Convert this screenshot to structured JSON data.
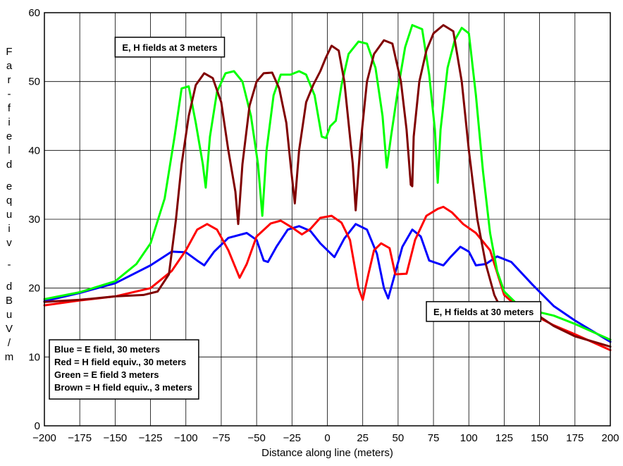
{
  "chart_data": {
    "type": "line",
    "xlabel": "Distance along line (meters)",
    "ylabel": "Far-field equiv - dBuV/m",
    "xlim": [
      -200,
      200
    ],
    "ylim": [
      0,
      60
    ],
    "x_ticks": [
      -200,
      -175,
      -150,
      -125,
      -100,
      -75,
      -50,
      -25,
      0,
      25,
      50,
      75,
      100,
      125,
      150,
      175,
      200
    ],
    "x_tick_labels": [
      "−200",
      "−175",
      "−150",
      "−125",
      "−100",
      "−75",
      "−50",
      "−25",
      "0",
      "25",
      "50",
      "75",
      "100",
      "125",
      "150",
      "175",
      "200"
    ],
    "y_ticks": [
      0,
      10,
      20,
      30,
      40,
      50,
      60
    ],
    "y_tick_labels": [
      "0",
      "10",
      "20",
      "30",
      "40",
      "50",
      "60"
    ],
    "grid": true,
    "annotations": [
      {
        "text": "E, H fields at 3 meters",
        "x": -150,
        "y": 55
      },
      {
        "text": "E, H fields at 30 meters",
        "x": 70,
        "y": 16.6
      }
    ],
    "legend_box": {
      "placement": "bottom-left",
      "lines": [
        "Blue = E field, 30 meters",
        "Red = H field equiv., 30 meters",
        "Green = E field 3 meters",
        "Brown = H field equiv., 3 meters"
      ]
    },
    "series": [
      {
        "color": "#0000ff",
        "points": [
          [
            -200,
            18.1
          ],
          [
            -175,
            19.3
          ],
          [
            -150,
            20.7
          ],
          [
            -125,
            23.3
          ],
          [
            -110,
            25.3
          ],
          [
            -100,
            25.2
          ],
          [
            -92,
            24
          ],
          [
            -87,
            23.3
          ],
          [
            -80,
            25.3
          ],
          [
            -70,
            27.3
          ],
          [
            -57,
            28
          ],
          [
            -50,
            27
          ],
          [
            -45,
            24
          ],
          [
            -42,
            23.8
          ],
          [
            -36,
            26
          ],
          [
            -28,
            28.5
          ],
          [
            -20,
            29
          ],
          [
            -12,
            28.3
          ],
          [
            -5,
            26.5
          ],
          [
            5,
            24.5
          ],
          [
            12,
            27.2
          ],
          [
            20,
            29.3
          ],
          [
            28,
            28.5
          ],
          [
            35,
            25
          ],
          [
            40,
            20
          ],
          [
            43,
            18.5
          ],
          [
            47,
            21.5
          ],
          [
            53,
            26
          ],
          [
            60,
            28.5
          ],
          [
            66,
            27.5
          ],
          [
            72,
            24
          ],
          [
            82,
            23.3
          ],
          [
            87,
            24.5
          ],
          [
            94,
            26
          ],
          [
            100,
            25.3
          ],
          [
            105,
            23.3
          ],
          [
            112,
            23.5
          ],
          [
            120,
            24.6
          ],
          [
            130,
            23.8
          ],
          [
            145,
            20.5
          ],
          [
            160,
            17.4
          ],
          [
            175,
            15.3
          ],
          [
            200,
            12.2
          ]
        ]
      },
      {
        "color": "#ff0000",
        "points": [
          [
            -200,
            17.5
          ],
          [
            -175,
            18.2
          ],
          [
            -150,
            18.8
          ],
          [
            -125,
            20
          ],
          [
            -110,
            22.5
          ],
          [
            -100,
            25.5
          ],
          [
            -92,
            28.5
          ],
          [
            -85,
            29.3
          ],
          [
            -78,
            28.5
          ],
          [
            -70,
            25.5
          ],
          [
            -62,
            21.5
          ],
          [
            -57,
            23.5
          ],
          [
            -50,
            27.5
          ],
          [
            -40,
            29.4
          ],
          [
            -33,
            29.8
          ],
          [
            -25,
            28.8
          ],
          [
            -18,
            27.8
          ],
          [
            -12,
            28.6
          ],
          [
            -5,
            30.2
          ],
          [
            3,
            30.5
          ],
          [
            10,
            29.5
          ],
          [
            16,
            27
          ],
          [
            22,
            20
          ],
          [
            25,
            18.3
          ],
          [
            29,
            22
          ],
          [
            33,
            25.5
          ],
          [
            38,
            26.5
          ],
          [
            44,
            25.8
          ],
          [
            48,
            22
          ],
          [
            56,
            22.1
          ],
          [
            62,
            27
          ],
          [
            70,
            30.5
          ],
          [
            78,
            31.5
          ],
          [
            82,
            31.8
          ],
          [
            88,
            31
          ],
          [
            96,
            29.3
          ],
          [
            105,
            28
          ],
          [
            115,
            25.5
          ],
          [
            125,
            19
          ],
          [
            135,
            17.2
          ],
          [
            145,
            16.2
          ],
          [
            160,
            14.6
          ],
          [
            175,
            13.3
          ],
          [
            200,
            11
          ]
        ]
      },
      {
        "color": "#00ff00",
        "points": [
          [
            -200,
            18.4
          ],
          [
            -175,
            19.4
          ],
          [
            -150,
            21
          ],
          [
            -135,
            23.5
          ],
          [
            -125,
            26.5
          ],
          [
            -115,
            33
          ],
          [
            -108,
            42
          ],
          [
            -103,
            49
          ],
          [
            -98,
            49.3
          ],
          [
            -93,
            44
          ],
          [
            -88,
            38
          ],
          [
            -86,
            34.6
          ],
          [
            -83,
            42
          ],
          [
            -78,
            48.5
          ],
          [
            -72,
            51.2
          ],
          [
            -66,
            51.5
          ],
          [
            -60,
            50
          ],
          [
            -54,
            45
          ],
          [
            -49,
            38
          ],
          [
            -46,
            30.5
          ],
          [
            -43,
            40
          ],
          [
            -38,
            48
          ],
          [
            -33,
            51
          ],
          [
            -26,
            51
          ],
          [
            -20,
            51.5
          ],
          [
            -15,
            51
          ],
          [
            -9,
            48
          ],
          [
            -4,
            42
          ],
          [
            -1,
            41.8
          ],
          [
            2,
            43.5
          ],
          [
            6,
            44.3
          ],
          [
            10,
            49.5
          ],
          [
            15,
            54
          ],
          [
            22,
            55.8
          ],
          [
            28,
            55.5
          ],
          [
            34,
            52
          ],
          [
            39,
            45
          ],
          [
            42,
            37.5
          ],
          [
            45,
            42
          ],
          [
            50,
            49
          ],
          [
            55,
            55
          ],
          [
            60,
            58.2
          ],
          [
            67,
            57.6
          ],
          [
            72,
            51
          ],
          [
            76,
            43
          ],
          [
            78,
            35.3
          ],
          [
            80,
            43
          ],
          [
            85,
            52
          ],
          [
            90,
            56
          ],
          [
            95,
            57.8
          ],
          [
            100,
            57
          ],
          [
            105,
            48
          ],
          [
            110,
            37
          ],
          [
            115,
            28
          ],
          [
            120,
            22.5
          ],
          [
            125,
            19.5
          ],
          [
            135,
            17.5
          ],
          [
            150,
            16.5
          ],
          [
            160,
            16
          ],
          [
            175,
            14.8
          ],
          [
            200,
            12.5
          ]
        ]
      },
      {
        "color": "#800000",
        "points": [
          [
            -200,
            18
          ],
          [
            -175,
            18.3
          ],
          [
            -150,
            18.8
          ],
          [
            -130,
            19
          ],
          [
            -120,
            19.5
          ],
          [
            -112,
            22
          ],
          [
            -107,
            30
          ],
          [
            -103,
            38
          ],
          [
            -98,
            45
          ],
          [
            -93,
            49.5
          ],
          [
            -87,
            51.2
          ],
          [
            -81,
            50.5
          ],
          [
            -75,
            47
          ],
          [
            -70,
            40
          ],
          [
            -65,
            34
          ],
          [
            -63,
            29.3
          ],
          [
            -60,
            38
          ],
          [
            -55,
            46.5
          ],
          [
            -50,
            50
          ],
          [
            -45,
            51.2
          ],
          [
            -39,
            51.3
          ],
          [
            -34,
            49
          ],
          [
            -29,
            44
          ],
          [
            -26,
            38
          ],
          [
            -23,
            32.3
          ],
          [
            -20,
            40
          ],
          [
            -15,
            47
          ],
          [
            -10,
            49.5
          ],
          [
            -5,
            51.5
          ],
          [
            -1,
            53.5
          ],
          [
            3,
            55.2
          ],
          [
            8,
            54.5
          ],
          [
            12,
            50
          ],
          [
            15,
            44
          ],
          [
            18,
            38
          ],
          [
            20,
            31.3
          ],
          [
            23,
            40
          ],
          [
            28,
            50
          ],
          [
            33,
            54
          ],
          [
            40,
            56
          ],
          [
            46,
            55.5
          ],
          [
            52,
            50
          ],
          [
            56,
            43
          ],
          [
            59,
            35
          ],
          [
            60,
            34.8
          ],
          [
            61,
            42
          ],
          [
            65,
            50
          ],
          [
            70,
            54.5
          ],
          [
            75,
            57
          ],
          [
            82,
            58.2
          ],
          [
            89,
            57.3
          ],
          [
            95,
            50
          ],
          [
            100,
            40
          ],
          [
            106,
            30
          ],
          [
            112,
            23.5
          ],
          [
            118,
            19
          ],
          [
            122,
            17.3
          ],
          [
            128,
            16.8
          ],
          [
            135,
            17.2
          ],
          [
            145,
            16.6
          ],
          [
            160,
            14.5
          ],
          [
            175,
            13
          ],
          [
            200,
            11.5
          ]
        ]
      }
    ]
  }
}
